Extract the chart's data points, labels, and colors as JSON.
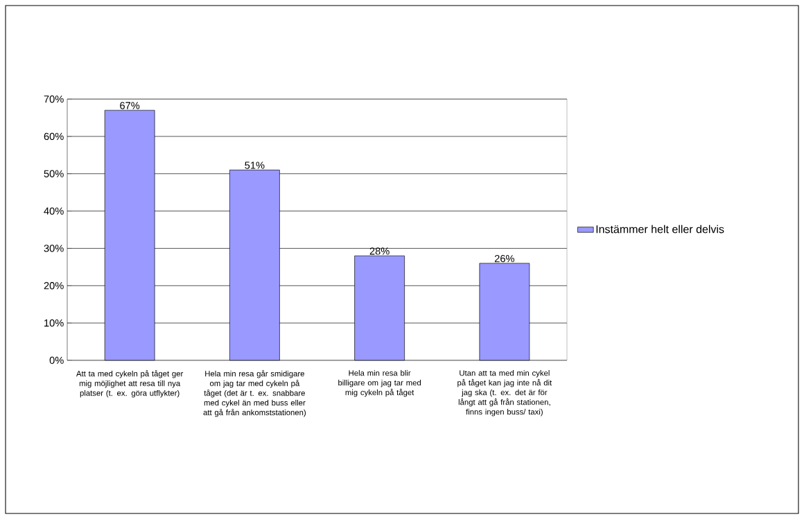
{
  "chart_data": {
    "type": "bar",
    "categories": [
      "Att ta med cykeln på tåget ger mig möjlighet att resa till nya platser (t. ex. göra utflykter)",
      "Hela min resa går smidigare om jag tar med cykeln på tåget (det är t. ex. snabbare med cykel än med buss eller att gå från ankomststationen)",
      "Hela min resa blir billigare om jag tar med mig cykeln på tåget",
      "Utan att ta med min cykel på tåget kan jag inte nå dit jag ska (t. ex. det är för långt att gå från stationen, finns ingen buss/ taxi)"
    ],
    "series": [
      {
        "name": "Instämmer helt eller delvis",
        "color": "#9999ff",
        "values": [
          67,
          51,
          28,
          26
        ]
      }
    ],
    "value_labels": [
      "67%",
      "51%",
      "28%",
      "26%"
    ],
    "ylim": [
      0,
      70
    ],
    "yticks": [
      {
        "value": 0,
        "label": "0%"
      },
      {
        "value": 10,
        "label": "10%"
      },
      {
        "value": 20,
        "label": "20%"
      },
      {
        "value": 30,
        "label": "30%"
      },
      {
        "value": 40,
        "label": "40%"
      },
      {
        "value": 50,
        "label": "50%"
      },
      {
        "value": 60,
        "label": "60%"
      },
      {
        "value": 70,
        "label": "70%"
      }
    ],
    "grid": "y",
    "legend": "right"
  }
}
